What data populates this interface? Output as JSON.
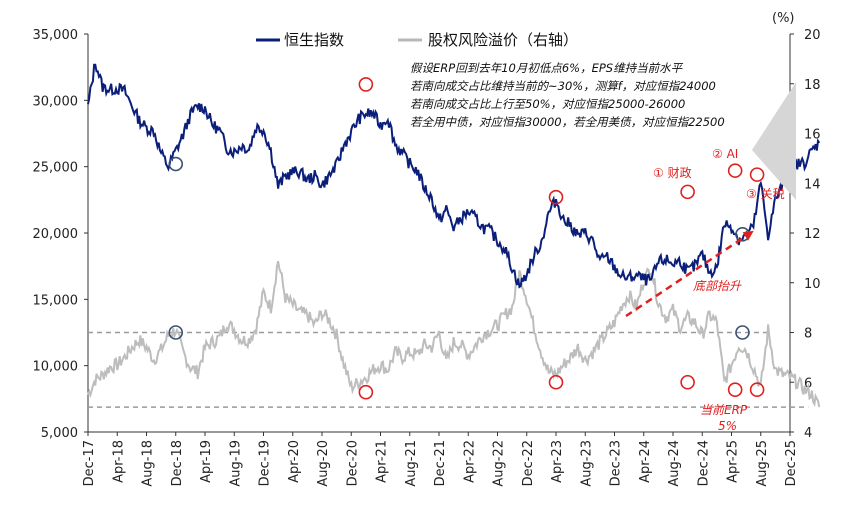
{
  "chart_data": {
    "type": "line",
    "unit_right": "(%)",
    "legend": [
      {
        "name": "恒生指数",
        "color": "#0b1f7a"
      },
      {
        "name": "股权风险溢价（右轴）",
        "color": "#b7b7b7"
      }
    ],
    "y_left": {
      "min": 5000,
      "max": 35000,
      "ticks": [
        "35,000",
        "30,000",
        "25,000",
        "20,000",
        "15,000",
        "10,000",
        "5,000"
      ]
    },
    "y_right": {
      "min": 4,
      "max": 20,
      "ticks": [
        "20",
        "18",
        "16",
        "14",
        "12",
        "10",
        "8",
        "6",
        "4"
      ]
    },
    "x_ticks": [
      "Dec-17",
      "Apr-18",
      "Aug-18",
      "Dec-18",
      "Apr-19",
      "Aug-19",
      "Dec-19",
      "Apr-20",
      "Aug-20",
      "Dec-20",
      "Apr-21",
      "Aug-21",
      "Dec-21",
      "Apr-22",
      "Aug-22",
      "Dec-22",
      "Apr-23",
      "Aug-23",
      "Dec-23",
      "Apr-24",
      "Aug-24",
      "Dec-24",
      "Apr-25",
      "Aug-25",
      "Dec-25"
    ],
    "hsi": [
      [
        0,
        29500
      ],
      [
        1,
        32900
      ],
      [
        2,
        31000
      ],
      [
        3,
        30800
      ],
      [
        4,
        30900
      ],
      [
        5,
        30700
      ],
      [
        6,
        29600
      ],
      [
        7,
        28500
      ],
      [
        8,
        27900
      ],
      [
        9,
        27700
      ],
      [
        10,
        26000
      ],
      [
        11,
        25000
      ],
      [
        12,
        26200
      ],
      [
        13,
        27400
      ],
      [
        14,
        28900
      ],
      [
        15,
        29600
      ],
      [
        16,
        29400
      ],
      [
        17,
        28200
      ],
      [
        18,
        27700
      ],
      [
        19,
        26400
      ],
      [
        20,
        26100
      ],
      [
        21,
        26600
      ],
      [
        22,
        26300
      ],
      [
        23,
        28000
      ],
      [
        24,
        27800
      ],
      [
        25,
        26200
      ],
      [
        26,
        23500
      ],
      [
        27,
        24300
      ],
      [
        28,
        24600
      ],
      [
        29,
        24600
      ],
      [
        30,
        24000
      ],
      [
        31,
        24300
      ],
      [
        32,
        23600
      ],
      [
        33,
        24300
      ],
      [
        34,
        25100
      ],
      [
        35,
        26600
      ],
      [
        36,
        27600
      ],
      [
        37,
        28600
      ],
      [
        38,
        29000
      ],
      [
        39,
        29000
      ],
      [
        40,
        28100
      ],
      [
        41,
        28700
      ],
      [
        42,
        26700
      ],
      [
        43,
        26000
      ],
      [
        44,
        25200
      ],
      [
        45,
        24700
      ],
      [
        46,
        23400
      ],
      [
        47,
        22600
      ],
      [
        48,
        20900
      ],
      [
        49,
        21800
      ],
      [
        50,
        20400
      ],
      [
        51,
        21100
      ],
      [
        52,
        21600
      ],
      [
        53,
        21100
      ],
      [
        54,
        20400
      ],
      [
        55,
        20200
      ],
      [
        56,
        19400
      ],
      [
        57,
        18800
      ],
      [
        58,
        17400
      ],
      [
        59,
        16000
      ],
      [
        60,
        16900
      ],
      [
        61,
        18300
      ],
      [
        62,
        19300
      ],
      [
        63,
        21500
      ],
      [
        64,
        22500
      ],
      [
        65,
        21000
      ],
      [
        66,
        20600
      ],
      [
        67,
        19800
      ],
      [
        68,
        20000
      ],
      [
        69,
        19400
      ],
      [
        70,
        17900
      ],
      [
        71,
        18200
      ],
      [
        72,
        17400
      ],
      [
        73,
        16700
      ],
      [
        74,
        16600
      ],
      [
        75,
        16800
      ],
      [
        76,
        16500
      ],
      [
        77,
        16400
      ],
      [
        78,
        17800
      ],
      [
        79,
        18000
      ],
      [
        80,
        17700
      ],
      [
        81,
        17900
      ],
      [
        82,
        17100
      ],
      [
        83,
        17500
      ],
      [
        84,
        18400
      ],
      [
        85,
        17000
      ],
      [
        86,
        17400
      ],
      [
        87,
        20700
      ],
      [
        88,
        20500
      ],
      [
        89,
        19500
      ],
      [
        90,
        19800
      ],
      [
        91,
        20500
      ],
      [
        92,
        23800
      ],
      [
        93,
        19800
      ],
      [
        94,
        22500
      ],
      [
        95,
        23600
      ],
      [
        96,
        24500
      ],
      [
        97,
        25200
      ],
      [
        98,
        25300
      ],
      [
        99,
        26200
      ],
      [
        100,
        26800
      ]
    ],
    "erp": [
      [
        0,
        5.5
      ],
      [
        1,
        6.1
      ],
      [
        2,
        6.3
      ],
      [
        3,
        6.6
      ],
      [
        4,
        6.7
      ],
      [
        5,
        7.0
      ],
      [
        6,
        7.4
      ],
      [
        7,
        7.7
      ],
      [
        8,
        7.4
      ],
      [
        9,
        6.9
      ],
      [
        10,
        7.3
      ],
      [
        11,
        7.9
      ],
      [
        12,
        8.1
      ],
      [
        13,
        7.2
      ],
      [
        14,
        6.6
      ],
      [
        15,
        6.4
      ],
      [
        16,
        7.4
      ],
      [
        17,
        7.6
      ],
      [
        18,
        7.8
      ],
      [
        19,
        8.4
      ],
      [
        20,
        8.1
      ],
      [
        21,
        7.7
      ],
      [
        22,
        7.7
      ],
      [
        23,
        8.2
      ],
      [
        24,
        9.6
      ],
      [
        25,
        9.0
      ],
      [
        26,
        10.9
      ],
      [
        27,
        9.4
      ],
      [
        28,
        9.1
      ],
      [
        29,
        8.8
      ],
      [
        30,
        8.7
      ],
      [
        31,
        8.3
      ],
      [
        32,
        8.8
      ],
      [
        33,
        8.5
      ],
      [
        34,
        7.9
      ],
      [
        35,
        6.7
      ],
      [
        36,
        5.8
      ],
      [
        37,
        6.0
      ],
      [
        38,
        6.2
      ],
      [
        39,
        6.5
      ],
      [
        40,
        6.7
      ],
      [
        41,
        6.5
      ],
      [
        42,
        7.2
      ],
      [
        43,
        7.0
      ],
      [
        44,
        7.2
      ],
      [
        45,
        7.1
      ],
      [
        46,
        7.5
      ],
      [
        47,
        7.4
      ],
      [
        48,
        8.0
      ],
      [
        49,
        6.8
      ],
      [
        50,
        7.6
      ],
      [
        51,
        7.5
      ],
      [
        52,
        7.1
      ],
      [
        53,
        7.5
      ],
      [
        54,
        7.9
      ],
      [
        55,
        8.1
      ],
      [
        56,
        8.3
      ],
      [
        57,
        8.7
      ],
      [
        58,
        9.0
      ],
      [
        59,
        10.4
      ],
      [
        60,
        9.4
      ],
      [
        61,
        8.2
      ],
      [
        62,
        7.2
      ],
      [
        63,
        6.4
      ],
      [
        64,
        6.3
      ],
      [
        65,
        6.7
      ],
      [
        66,
        7.0
      ],
      [
        67,
        7.4
      ],
      [
        68,
        6.9
      ],
      [
        69,
        7.2
      ],
      [
        70,
        7.6
      ],
      [
        71,
        8.0
      ],
      [
        72,
        8.4
      ],
      [
        73,
        9.1
      ],
      [
        74,
        9.5
      ],
      [
        75,
        9.0
      ],
      [
        76,
        10.1
      ],
      [
        77,
        10.6
      ],
      [
        78,
        9.2
      ],
      [
        79,
        8.6
      ],
      [
        80,
        8.9
      ],
      [
        81,
        8.2
      ],
      [
        82,
        8.6
      ],
      [
        83,
        8.4
      ],
      [
        84,
        7.9
      ],
      [
        85,
        8.7
      ],
      [
        86,
        8.4
      ],
      [
        87,
        6.0
      ],
      [
        88,
        6.7
      ],
      [
        89,
        7.5
      ],
      [
        90,
        7.3
      ],
      [
        91,
        6.6
      ],
      [
        92,
        5.8
      ],
      [
        93,
        8.1
      ],
      [
        94,
        6.5
      ],
      [
        95,
        6.3
      ],
      [
        96,
        6.2
      ],
      [
        97,
        6.0
      ],
      [
        98,
        5.7
      ],
      [
        99,
        5.5
      ],
      [
        100,
        5.0
      ]
    ],
    "annotations": {
      "lines": [
        "假设ERP回到去年10月初低点6%，EPS维持当前水平",
        "若南向成交占比维持当前的~30%，测算f，对应恒指24000",
        "若南向成交占比上行至50%，对应恒指25000-26000",
        "若全用中债，对应恒指30000，若全用美债，对应恒指22500"
      ],
      "labels": [
        "① 财政",
        "② AI",
        "③ 关税",
        "底部抬升",
        "当前ERP",
        "5%"
      ]
    },
    "reference_lines_right": [
      8,
      5
    ]
  }
}
